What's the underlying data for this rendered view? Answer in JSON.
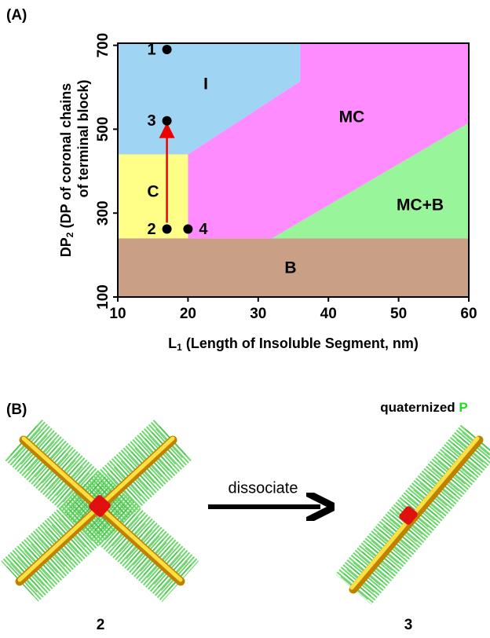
{
  "panel_a_label": "(A)",
  "panel_b_label": "(B)",
  "chart_data": {
    "type": "region",
    "x_label": {
      "main": "L",
      "sub": "1",
      "rest": " (Length of Insoluble Segment, nm)"
    },
    "y_label": {
      "main": "DP",
      "sub": "2",
      "line1": " (DP of coronal chains",
      "line2": "of terminal block)"
    },
    "xlim": [
      10,
      60
    ],
    "xticks": [
      10,
      20,
      30,
      40,
      50,
      60
    ],
    "ylim": [
      100,
      705
    ],
    "yticks": [
      100,
      300,
      500,
      700
    ],
    "regions": [
      {
        "name": "B",
        "color": "#c9a086",
        "x": [
          10,
          60,
          60,
          10
        ],
        "y": [
          100,
          100,
          240,
          240
        ]
      },
      {
        "name": "C",
        "color": "#ffff88",
        "x": [
          10,
          20,
          20,
          10
        ],
        "y": [
          240,
          240,
          440,
          440
        ]
      },
      {
        "name": "I",
        "color": "#9fd4f2",
        "x": [
          10,
          20,
          36,
          36,
          10
        ],
        "y": [
          440,
          440,
          614,
          705,
          705
        ]
      },
      {
        "name": "MC",
        "color": "#ff8cff",
        "x": [
          20,
          32,
          60,
          60,
          36,
          36,
          20
        ],
        "y": [
          240,
          240,
          515,
          705,
          705,
          614,
          440
        ]
      },
      {
        "name": "MC+B",
        "color": "#99f599",
        "x": [
          32,
          60,
          60
        ],
        "y": [
          240,
          240,
          515
        ]
      }
    ],
    "points": [
      {
        "label": "1",
        "x": 17,
        "y": 690
      },
      {
        "label": "3",
        "x": 17,
        "y": 520
      },
      {
        "label": "2",
        "x": 17,
        "y": 262
      },
      {
        "label": "4",
        "x": 20,
        "y": 262
      }
    ]
  },
  "illustration": {
    "action": "dissociate",
    "product_prefix": "quaternized ",
    "product_letter": "P",
    "left_label": "2",
    "right_label": "3"
  }
}
